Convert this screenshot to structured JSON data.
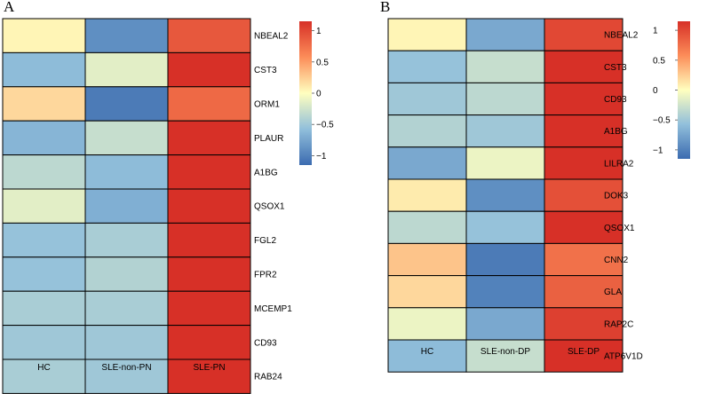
{
  "chart_data": [
    {
      "type": "heatmap",
      "panel_label": "A",
      "columns": [
        "HC",
        "SLE-non-PN",
        "SLE-PN"
      ],
      "rows": [
        "NBEAL2",
        "CST3",
        "ORM1",
        "PLAUR",
        "A1BG",
        "QSOX1",
        "FGL2",
        "FPR2",
        "MCEMP1",
        "CD93",
        "RAB24"
      ],
      "values": [
        [
          0.05,
          -0.95,
          0.9
        ],
        [
          -0.6,
          -0.15,
          1.15
        ],
        [
          0.2,
          -1.1,
          0.8
        ],
        [
          -0.65,
          -0.3,
          1.15
        ],
        [
          -0.35,
          -0.6,
          1.15
        ],
        [
          -0.15,
          -0.7,
          1.15
        ],
        [
          -0.55,
          -0.45,
          1.15
        ],
        [
          -0.55,
          -0.4,
          1.15
        ],
        [
          -0.45,
          -0.45,
          1.15
        ],
        [
          -0.5,
          -0.5,
          1.15
        ],
        [
          -0.45,
          -0.5,
          1.15
        ]
      ],
      "legend": {
        "ticks": [
          1,
          0.5,
          0,
          -0.5,
          -1
        ],
        "tick_labels": [
          "1",
          "0.5",
          "0",
          "−0.5",
          "−1"
        ],
        "range": [
          -1.15,
          1.15
        ]
      }
    },
    {
      "type": "heatmap",
      "panel_label": "B",
      "columns": [
        "HC",
        "SLE-non-DP",
        "SLE-DP"
      ],
      "rows": [
        "NBEAL2",
        "CST3",
        "CD93",
        "A1BG",
        "LILRA2",
        "DOK3",
        "QSOX1",
        "CNN2",
        "GLA",
        "RAP2C",
        "ATP6V1D"
      ],
      "values": [
        [
          0.05,
          -0.75,
          1.0
        ],
        [
          -0.55,
          -0.3,
          1.15
        ],
        [
          -0.5,
          -0.35,
          1.15
        ],
        [
          -0.4,
          -0.5,
          1.15
        ],
        [
          -0.75,
          -0.1,
          1.15
        ],
        [
          0.1,
          -0.95,
          0.95
        ],
        [
          -0.35,
          -0.55,
          1.15
        ],
        [
          0.3,
          -1.1,
          0.75
        ],
        [
          0.2,
          -1.05,
          0.85
        ],
        [
          -0.1,
          -0.75,
          1.05
        ],
        [
          -0.6,
          -0.3,
          1.15
        ]
      ],
      "legend": {
        "ticks": [
          1,
          0.5,
          0,
          -0.5,
          -1
        ],
        "tick_labels": [
          "1",
          "0.5",
          "0",
          "−0.5",
          "−1"
        ],
        "range": [
          -1.15,
          1.15
        ]
      }
    }
  ],
  "colors": {
    "low": "#4575b4",
    "mid_low": "#91bfdb",
    "mid": "#ffffbf",
    "mid_high": "#fc8d59",
    "high": "#d73027"
  }
}
